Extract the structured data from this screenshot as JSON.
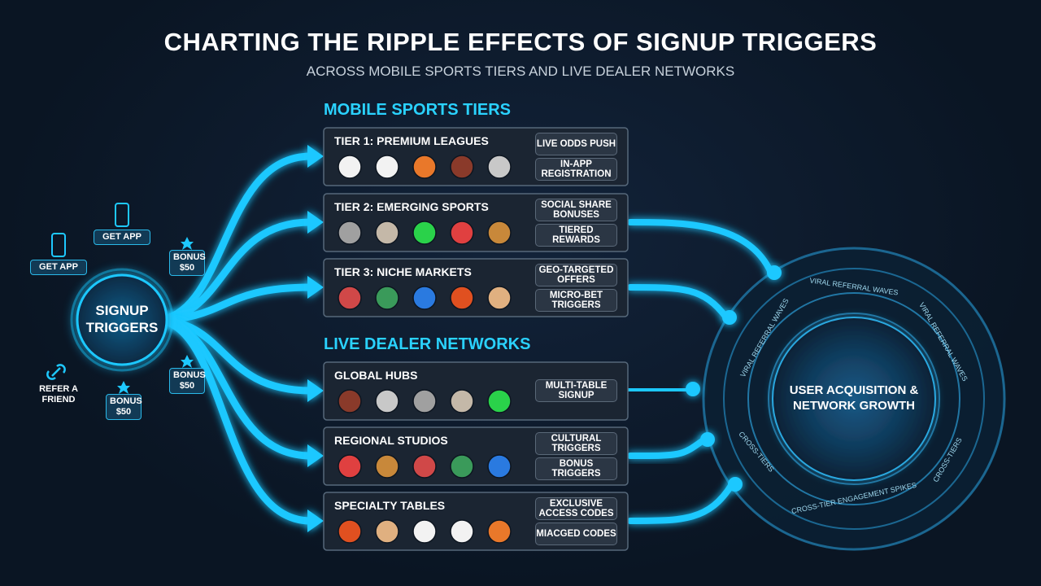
{
  "header": {
    "title": "CHARTING THE RIPPLE EFFECTS OF SIGNUP TRIGGERS",
    "subtitle": "ACROSS MOBILE SPORTS TIERS AND LIVE DEALER NETWORKS"
  },
  "hub": {
    "label": "SIGNUP TRIGGERS"
  },
  "badges": [
    {
      "label": "GET APP"
    },
    {
      "label": "GET APP"
    },
    {
      "label": "BONUS $50"
    },
    {
      "label": "BONUS $50"
    },
    {
      "label": "BONUS $50"
    },
    {
      "label": "REFER A FRIEND"
    }
  ],
  "sections": [
    {
      "title": "MOBILE SPORTS TIERS",
      "cards": [
        {
          "title": "TIER 1: PREMIUM LEAGUES",
          "tags": [
            "LIVE ODDS PUSH",
            "IN-APP REGISTRATION"
          ]
        },
        {
          "title": "TIER 2: EMERGING SPORTS",
          "tags": [
            "SOCIAL SHARE BONUSES",
            "TIERED REWARDS"
          ]
        },
        {
          "title": "TIER 3: NICHE MARKETS",
          "tags": [
            "GEO-TARGETED OFFERS",
            "MICRO-BET TRIGGERS"
          ]
        }
      ]
    },
    {
      "title": "LIVE DEALER NETWORKS",
      "cards": [
        {
          "title": "GLOBAL HUBS",
          "tags": [
            "MULTI-TABLE SIGNUP"
          ]
        },
        {
          "title": "REGIONAL STUDIOS",
          "tags": [
            "CULTURAL TRIGGERS",
            "BONUS TRIGGERS"
          ]
        },
        {
          "title": "SPECIALTY TABLES",
          "tags": [
            "EXCLUSIVE ACCESS CODES",
            "MIACGED CODES"
          ]
        }
      ]
    }
  ],
  "target": {
    "label": "USER ACQUISITION & NETWORK GROWTH",
    "ring_labels": [
      "VIRAL REFERRAL WAVES",
      "VIRAL REFERRAL WAVES",
      "VIRAL REFERRAL WAVES",
      "CROSS-TIERS",
      "CROSS-TIER ENGAGEMENT SPIKES",
      "CROSS-TIERS"
    ]
  }
}
